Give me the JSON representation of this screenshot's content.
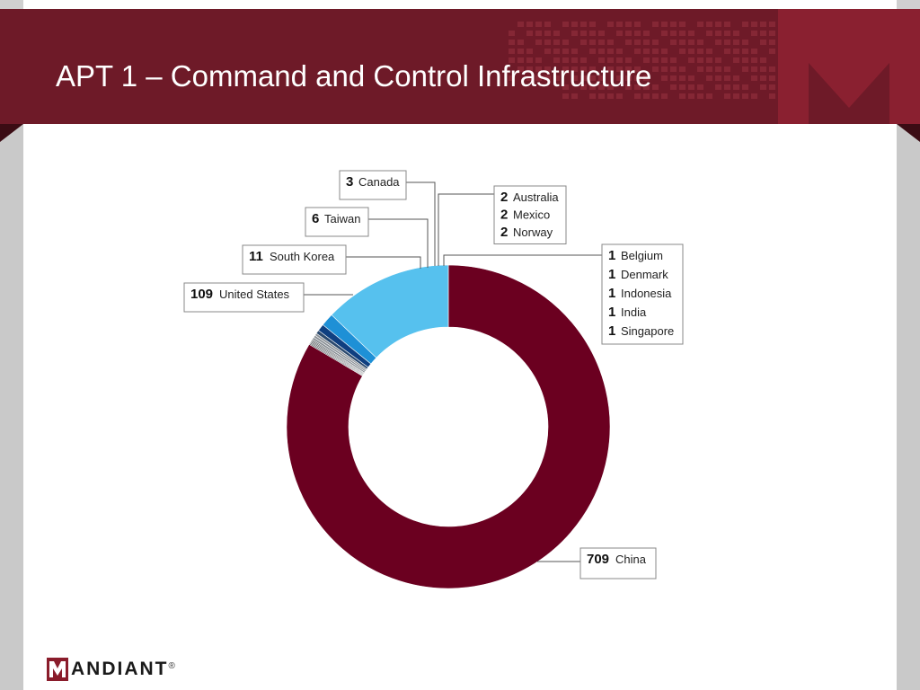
{
  "slide": {
    "title": "APT 1 – Command and Control Infrastructure",
    "logo_text": "ANDIANT",
    "logo_reg": "®"
  },
  "colors": {
    "banner": "#6e1a28",
    "china": "#6b0020",
    "united_states": "#56c1ee",
    "south_korea": "#1e90d6",
    "taiwan": "#0f3f80",
    "other": "#5a5f64"
  },
  "chart_data": {
    "type": "pie",
    "style": "donut",
    "title": "",
    "slices": [
      {
        "label": "China",
        "value": 709,
        "color": "#6b0020"
      },
      {
        "label": "Singapore",
        "value": 1,
        "color": "#3b4247"
      },
      {
        "label": "India",
        "value": 1,
        "color": "#3b4247"
      },
      {
        "label": "Indonesia",
        "value": 1,
        "color": "#3b4247"
      },
      {
        "label": "Denmark",
        "value": 1,
        "color": "#3b4247"
      },
      {
        "label": "Belgium",
        "value": 1,
        "color": "#3b4247"
      },
      {
        "label": "Norway",
        "value": 2,
        "color": "#8a9096"
      },
      {
        "label": "Mexico",
        "value": 2,
        "color": "#8a9096"
      },
      {
        "label": "Australia",
        "value": 2,
        "color": "#8a9096"
      },
      {
        "label": "Canada",
        "value": 3,
        "color": "#2c4a6e"
      },
      {
        "label": "Taiwan",
        "value": 6,
        "color": "#0f3f80"
      },
      {
        "label": "South Korea",
        "value": 11,
        "color": "#1e90d6"
      },
      {
        "label": "United States",
        "value": 109,
        "color": "#56c1ee"
      }
    ],
    "callouts": [
      {
        "group": "canada",
        "entries": [
          {
            "value": "3",
            "label": "Canada"
          }
        ]
      },
      {
        "group": "taiwan",
        "entries": [
          {
            "value": "6",
            "label": "Taiwan"
          }
        ]
      },
      {
        "group": "south_korea",
        "entries": [
          {
            "value": "11",
            "label": "South Korea"
          }
        ]
      },
      {
        "group": "united_states",
        "entries": [
          {
            "value": "109",
            "label": "United States"
          }
        ]
      },
      {
        "group": "twos",
        "entries": [
          {
            "value": "2",
            "label": "Australia"
          },
          {
            "value": "2",
            "label": "Mexico"
          },
          {
            "value": "2",
            "label": "Norway"
          }
        ]
      },
      {
        "group": "ones",
        "entries": [
          {
            "value": "1",
            "label": "Belgium"
          },
          {
            "value": "1",
            "label": "Denmark"
          },
          {
            "value": "1",
            "label": "Indonesia"
          },
          {
            "value": "1",
            "label": "India"
          },
          {
            "value": "1",
            "label": "Singapore"
          }
        ]
      },
      {
        "group": "china",
        "entries": [
          {
            "value": "709",
            "label": "China"
          }
        ]
      }
    ]
  }
}
